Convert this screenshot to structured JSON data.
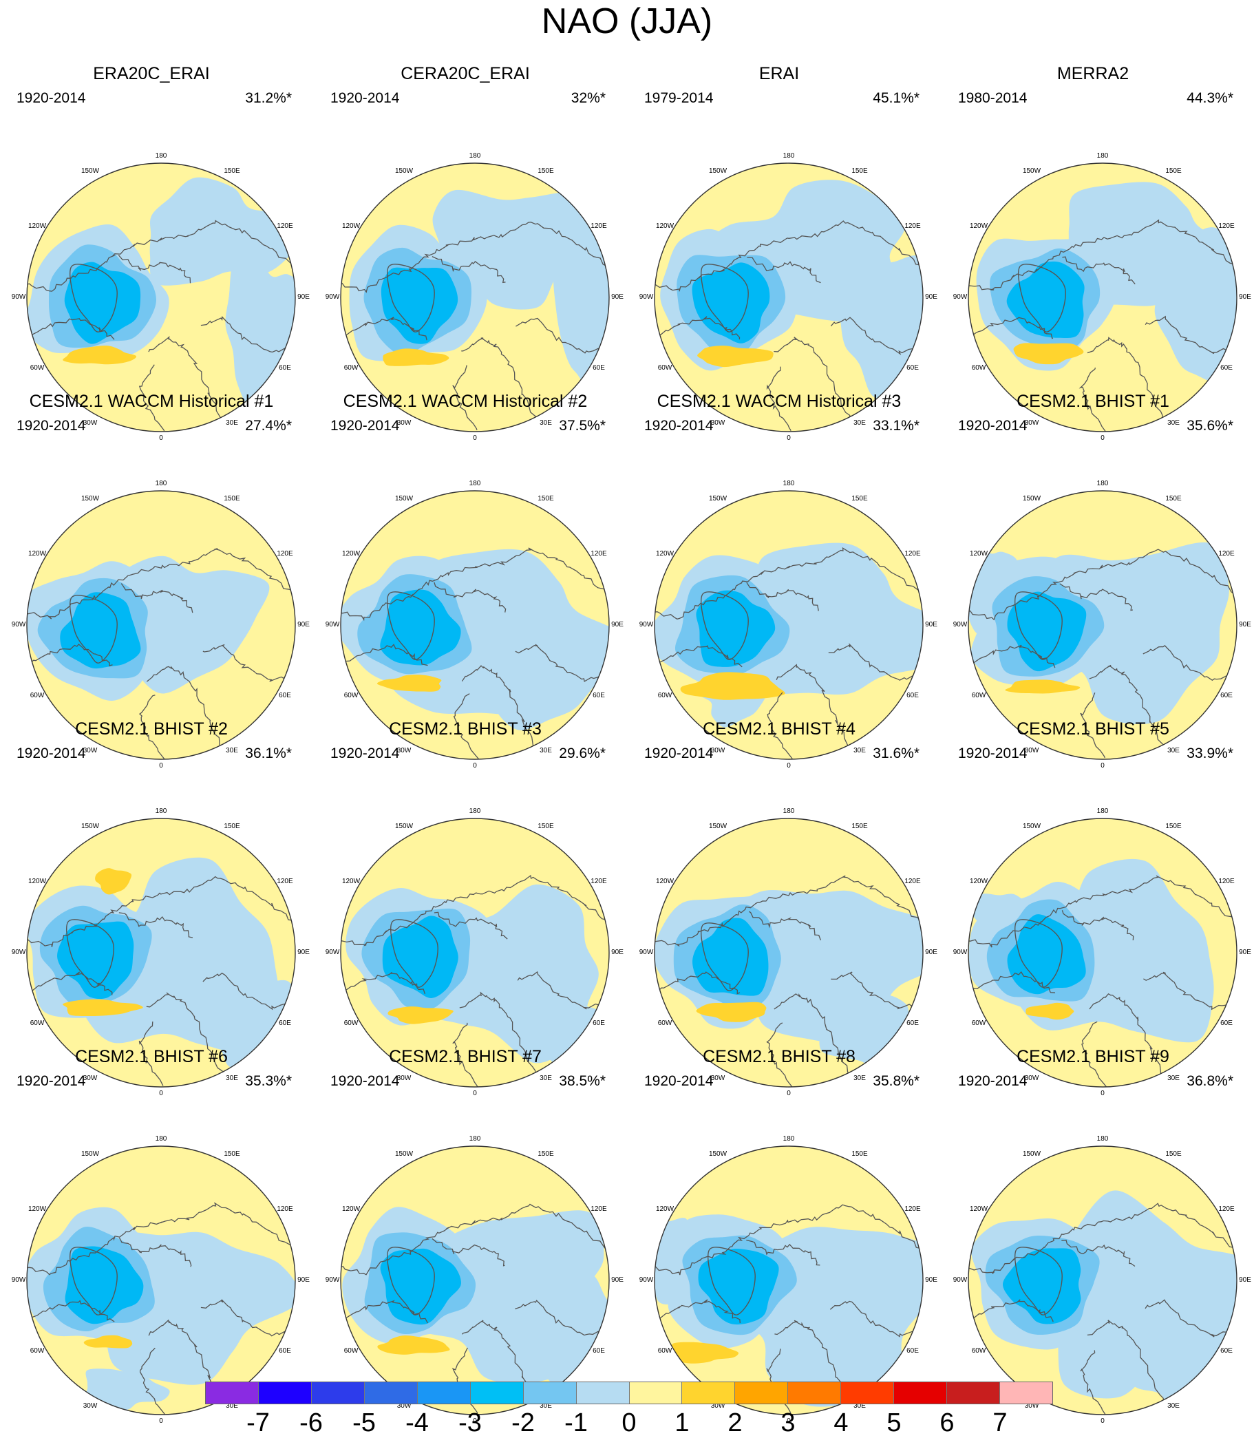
{
  "title": "NAO (JJA)",
  "long_labels": [
    "180",
    "150E",
    "120E",
    "90E",
    "60E",
    "30E",
    "0",
    "30W",
    "60W",
    "90W",
    "120W",
    "150W"
  ],
  "palette": {
    "negative_1": "#b6dcf2",
    "negative_2": "#74c6f1",
    "negative_3": "#00b8f5",
    "positive_1": "#fff59e",
    "positive_2": "#ffd42e",
    "coastline": "#555555",
    "frame": "#333333"
  },
  "panels": [
    {
      "title": "ERA20C_ERAI",
      "period": "1920-2014",
      "variance": "31.2%*"
    },
    {
      "title": "CERA20C_ERAI",
      "period": "1920-2014",
      "variance": "32%*"
    },
    {
      "title": "ERAI",
      "period": "1979-2014",
      "variance": "45.1%*"
    },
    {
      "title": "MERRA2",
      "period": "1980-2014",
      "variance": "44.3%*"
    },
    {
      "title": "CESM2.1 WACCM Historical #1",
      "period": "1920-2014",
      "variance": "27.4%*"
    },
    {
      "title": "CESM2.1 WACCM Historical #2",
      "period": "1920-2014",
      "variance": "37.5%*"
    },
    {
      "title": "CESM2.1 WACCM Historical #3",
      "period": "1920-2014",
      "variance": "33.1%*"
    },
    {
      "title": "CESM2.1 BHIST #1",
      "period": "1920-2014",
      "variance": "35.6%*"
    },
    {
      "title": "CESM2.1 BHIST #2",
      "period": "1920-2014",
      "variance": "36.1%*"
    },
    {
      "title": "CESM2.1 BHIST #3",
      "period": "1920-2014",
      "variance": "29.6%*"
    },
    {
      "title": "CESM2.1 BHIST #4",
      "period": "1920-2014",
      "variance": "31.6%*"
    },
    {
      "title": "CESM2.1 BHIST #5",
      "period": "1920-2014",
      "variance": "33.9%*"
    },
    {
      "title": "CESM2.1 BHIST #6",
      "period": "1920-2014",
      "variance": "35.3%*"
    },
    {
      "title": "CESM2.1 BHIST #7",
      "period": "1920-2014",
      "variance": "38.5%*"
    },
    {
      "title": "CESM2.1 BHIST #8",
      "period": "1920-2014",
      "variance": "35.8%*"
    },
    {
      "title": "CESM2.1 BHIST #9",
      "period": "1920-2014",
      "variance": "36.8%*"
    }
  ],
  "colorbar": {
    "labels": [
      "-7",
      "-6",
      "-5",
      "-4",
      "-3",
      "-2",
      "-1",
      "0",
      "1",
      "2",
      "3",
      "4",
      "5",
      "6",
      "7"
    ],
    "colors": [
      "#8a2be2",
      "#1e00ff",
      "#2d3ceb",
      "#2f6be6",
      "#1a96f5",
      "#00bff5",
      "#74c6f1",
      "#b6dcf2",
      "#fff59e",
      "#ffd42e",
      "#ffa500",
      "#ff7a00",
      "#ff3c00",
      "#e50000",
      "#c81e1e",
      "#ffb6b6"
    ]
  }
}
